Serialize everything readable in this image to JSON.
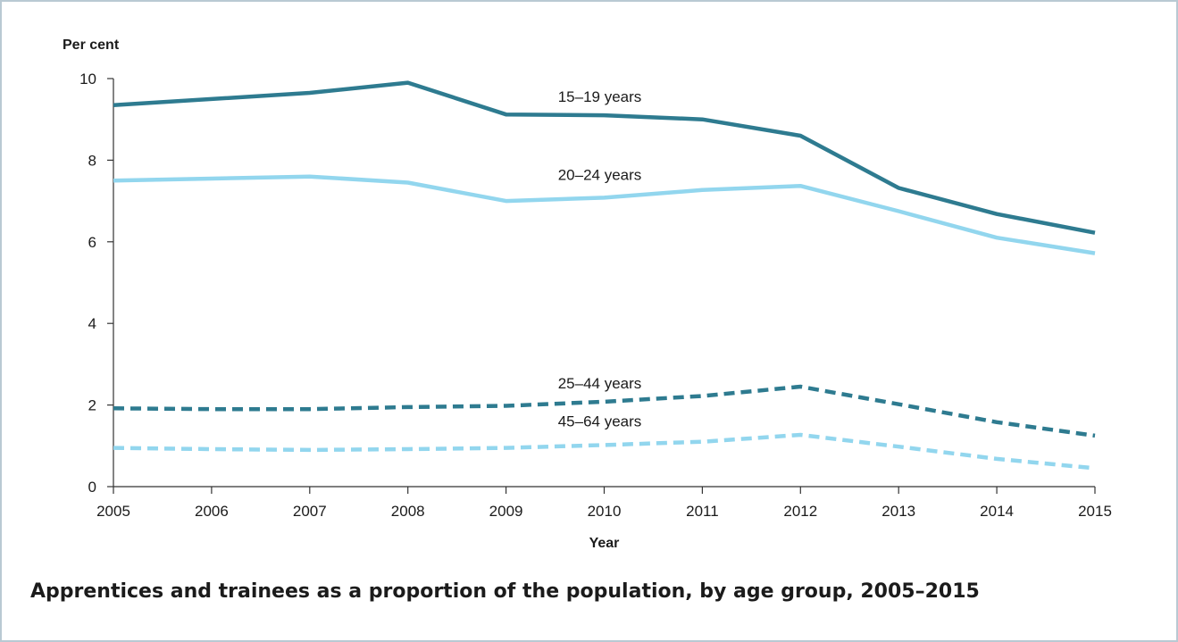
{
  "caption": "Apprentices and trainees as a proportion of the population, by age group, 2005–2015",
  "chart_data": {
    "type": "line",
    "ylabel": "Per cent",
    "xlabel": "Year",
    "ylim": [
      0,
      10
    ],
    "yticks": [
      "0",
      "2",
      "4",
      "6",
      "8",
      "10"
    ],
    "x": [
      "2005",
      "2006",
      "2007",
      "2008",
      "2009",
      "2010",
      "2011",
      "2012",
      "2013",
      "2014",
      "2015"
    ],
    "grid": false,
    "legend": "inline labels",
    "series": [
      {
        "name": "15–19 years",
        "color": "#2e7b90",
        "style": "solid",
        "values": [
          9.35,
          9.5,
          9.65,
          9.9,
          9.12,
          9.1,
          9.0,
          8.6,
          7.32,
          6.68,
          6.22
        ]
      },
      {
        "name": "20–24 years",
        "color": "#92d6ee",
        "style": "solid",
        "values": [
          7.5,
          7.55,
          7.6,
          7.45,
          7.0,
          7.08,
          7.27,
          7.37,
          6.75,
          6.1,
          5.72
        ]
      },
      {
        "name": "25–44 years",
        "color": "#2e7b90",
        "style": "dashed",
        "values": [
          1.92,
          1.9,
          1.9,
          1.95,
          1.98,
          2.08,
          2.22,
          2.45,
          2.02,
          1.58,
          1.25
        ]
      },
      {
        "name": "45–64 years",
        "color": "#92d6ee",
        "style": "dashed",
        "values": [
          0.95,
          0.92,
          0.9,
          0.92,
          0.95,
          1.02,
          1.1,
          1.27,
          0.98,
          0.68,
          0.45
        ]
      }
    ]
  }
}
